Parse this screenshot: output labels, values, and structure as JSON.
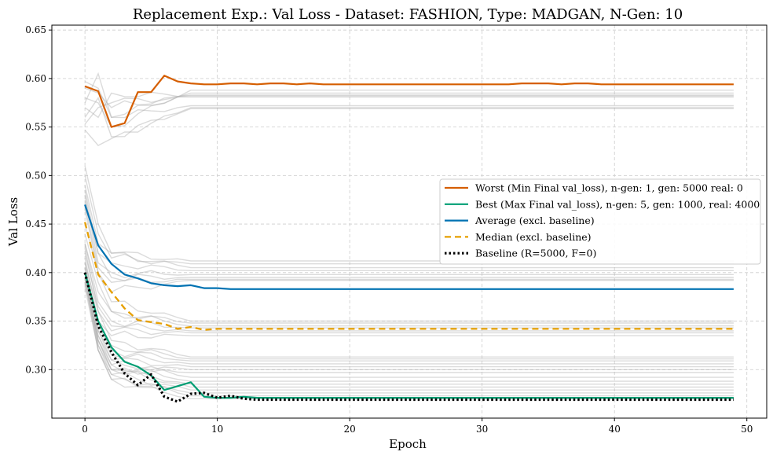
{
  "chart_data": {
    "type": "line",
    "title": "Replacement Exp.: Val Loss - Dataset: FASHION, Type: MADGAN, N-Gen: 10",
    "xlabel": "Epoch",
    "ylabel": "Val Loss",
    "xlim": [
      -2.5,
      51.5
    ],
    "ylim": [
      0.25,
      0.655
    ],
    "xticks": [
      0,
      10,
      20,
      30,
      40,
      50
    ],
    "yticks": [
      0.3,
      0.35,
      0.4,
      0.45,
      0.5,
      0.55,
      0.6,
      0.65
    ],
    "xtick_labels": [
      "0",
      "10",
      "20",
      "30",
      "40",
      "50"
    ],
    "ytick_labels": [
      "0.30",
      "0.35",
      "0.40",
      "0.45",
      "0.50",
      "0.55",
      "0.60",
      "0.65"
    ],
    "grid": true,
    "legend_position": "right",
    "colors": {
      "worst": "#d55e00",
      "best": "#009e73",
      "average": "#0072b2",
      "median": "#e69f00",
      "baseline": "#000000",
      "background_runs": "#b0b0b0"
    },
    "series": [
      {
        "key": "worst",
        "name": "Worst (Min Final val_loss), n-gen: 1, gen: 5000 real: 0",
        "style": "solid",
        "values": [
          0.592,
          0.587,
          0.55,
          0.554,
          0.586,
          0.586,
          0.603,
          0.597,
          0.595,
          0.594,
          0.594,
          0.595,
          0.595,
          0.594,
          0.595,
          0.595,
          0.594,
          0.595,
          0.594,
          0.594,
          0.594,
          0.594,
          0.594,
          0.594,
          0.594,
          0.594,
          0.594,
          0.594,
          0.594,
          0.594,
          0.594,
          0.594,
          0.594,
          0.595,
          0.595,
          0.595,
          0.594,
          0.595,
          0.595,
          0.594,
          0.594,
          0.594,
          0.594,
          0.594,
          0.594,
          0.594,
          0.594,
          0.594,
          0.594,
          0.594
        ]
      },
      {
        "key": "best",
        "name": "Best (Max Final val_loss), n-gen: 5, gen: 1000, real: 4000",
        "style": "solid",
        "values": [
          0.4,
          0.35,
          0.323,
          0.308,
          0.303,
          0.294,
          0.279,
          0.283,
          0.287,
          0.272,
          0.271,
          0.271,
          0.272,
          0.271,
          0.271,
          0.271,
          0.271,
          0.271,
          0.271,
          0.271,
          0.271,
          0.271,
          0.271,
          0.271,
          0.271,
          0.271,
          0.271,
          0.271,
          0.271,
          0.271,
          0.271,
          0.271,
          0.271,
          0.271,
          0.271,
          0.271,
          0.271,
          0.271,
          0.271,
          0.271,
          0.271,
          0.271,
          0.271,
          0.271,
          0.271,
          0.271,
          0.271,
          0.271,
          0.271,
          0.271
        ]
      },
      {
        "key": "average",
        "name": "Average (excl. baseline)",
        "style": "solid",
        "values": [
          0.47,
          0.428,
          0.409,
          0.398,
          0.394,
          0.389,
          0.387,
          0.386,
          0.387,
          0.384,
          0.384,
          0.383,
          0.383,
          0.383,
          0.383,
          0.383,
          0.383,
          0.383,
          0.383,
          0.383,
          0.383,
          0.383,
          0.383,
          0.383,
          0.383,
          0.383,
          0.383,
          0.383,
          0.383,
          0.383,
          0.383,
          0.383,
          0.383,
          0.383,
          0.383,
          0.383,
          0.383,
          0.383,
          0.383,
          0.383,
          0.383,
          0.383,
          0.383,
          0.383,
          0.383,
          0.383,
          0.383,
          0.383,
          0.383,
          0.383
        ]
      },
      {
        "key": "median",
        "name": "Median (excl. baseline)",
        "style": "dashed",
        "values": [
          0.452,
          0.398,
          0.38,
          0.363,
          0.351,
          0.349,
          0.347,
          0.342,
          0.344,
          0.341,
          0.342,
          0.342,
          0.342,
          0.342,
          0.342,
          0.342,
          0.342,
          0.342,
          0.342,
          0.342,
          0.342,
          0.342,
          0.342,
          0.342,
          0.342,
          0.342,
          0.342,
          0.342,
          0.342,
          0.342,
          0.342,
          0.342,
          0.342,
          0.342,
          0.342,
          0.342,
          0.342,
          0.342,
          0.342,
          0.342,
          0.342,
          0.342,
          0.342,
          0.342,
          0.342,
          0.342,
          0.342,
          0.342,
          0.342,
          0.342
        ]
      },
      {
        "key": "baseline",
        "name": "Baseline (R=5000, F=0)",
        "style": "dotted",
        "values": [
          0.4,
          0.345,
          0.318,
          0.296,
          0.284,
          0.295,
          0.272,
          0.267,
          0.275,
          0.276,
          0.271,
          0.273,
          0.27,
          0.269,
          0.269,
          0.269,
          0.269,
          0.269,
          0.269,
          0.269,
          0.269,
          0.269,
          0.269,
          0.269,
          0.269,
          0.269,
          0.269,
          0.269,
          0.269,
          0.269,
          0.269,
          0.269,
          0.269,
          0.269,
          0.269,
          0.269,
          0.269,
          0.269,
          0.269,
          0.269,
          0.269,
          0.269,
          0.269,
          0.269,
          0.269,
          0.269,
          0.269,
          0.269,
          0.269,
          0.269
        ]
      }
    ],
    "background_runs": [
      {
        "start": [
          0.56,
          0.58,
          0.54
        ],
        "final": 0.569
      },
      {
        "start": [
          0.575,
          0.605,
          0.56
        ],
        "final": 0.585
      },
      {
        "start": [
          0.553,
          0.57,
          0.575
        ],
        "final": 0.581
      },
      {
        "start": [
          0.59,
          0.585,
          0.57
        ],
        "final": 0.583
      },
      {
        "start": [
          0.547,
          0.531,
          0.538
        ],
        "final": 0.57
      },
      {
        "start": [
          0.57,
          0.56,
          0.585
        ],
        "final": 0.582
      },
      {
        "start": [
          0.58,
          0.575,
          0.55
        ],
        "final": 0.588
      },
      {
        "start": [
          0.597,
          0.59,
          0.56
        ],
        "final": 0.572
      },
      {
        "start": [
          0.51,
          0.45,
          0.42
        ],
        "final": 0.412
      },
      {
        "start": [
          0.5,
          0.44,
          0.415
        ],
        "final": 0.409
      },
      {
        "start": [
          0.49,
          0.43,
          0.42
        ],
        "final": 0.405
      },
      {
        "start": [
          0.485,
          0.42,
          0.41
        ],
        "final": 0.402
      },
      {
        "start": [
          0.48,
          0.41,
          0.4
        ],
        "final": 0.398
      },
      {
        "start": [
          0.475,
          0.42,
          0.395
        ],
        "final": 0.395
      },
      {
        "start": [
          0.47,
          0.405,
          0.39
        ],
        "final": 0.393
      },
      {
        "start": [
          0.465,
          0.4,
          0.38
        ],
        "final": 0.392
      },
      {
        "start": [
          0.45,
          0.4,
          0.37
        ],
        "final": 0.35
      },
      {
        "start": [
          0.44,
          0.39,
          0.36
        ],
        "final": 0.348
      },
      {
        "start": [
          0.43,
          0.38,
          0.36
        ],
        "final": 0.345
      },
      {
        "start": [
          0.43,
          0.37,
          0.35
        ],
        "final": 0.343
      },
      {
        "start": [
          0.42,
          0.365,
          0.345
        ],
        "final": 0.34
      },
      {
        "start": [
          0.41,
          0.36,
          0.34
        ],
        "final": 0.338
      },
      {
        "start": [
          0.4,
          0.35,
          0.335
        ],
        "final": 0.335
      },
      {
        "start": [
          0.425,
          0.36,
          0.33
        ],
        "final": 0.313
      },
      {
        "start": [
          0.415,
          0.35,
          0.325
        ],
        "final": 0.311
      },
      {
        "start": [
          0.405,
          0.345,
          0.32
        ],
        "final": 0.309
      },
      {
        "start": [
          0.4,
          0.34,
          0.315
        ],
        "final": 0.306
      },
      {
        "start": [
          0.395,
          0.335,
          0.31
        ],
        "final": 0.303
      },
      {
        "start": [
          0.4,
          0.33,
          0.305
        ],
        "final": 0.3
      },
      {
        "start": [
          0.39,
          0.33,
          0.3
        ],
        "final": 0.297
      },
      {
        "start": [
          0.41,
          0.34,
          0.31
        ],
        "final": 0.292
      },
      {
        "start": [
          0.405,
          0.335,
          0.305
        ],
        "final": 0.288
      },
      {
        "start": [
          0.4,
          0.33,
          0.3
        ],
        "final": 0.285
      },
      {
        "start": [
          0.395,
          0.325,
          0.3
        ],
        "final": 0.282
      },
      {
        "start": [
          0.39,
          0.32,
          0.295
        ],
        "final": 0.279
      },
      {
        "start": [
          0.385,
          0.32,
          0.29
        ],
        "final": 0.276
      },
      {
        "start": [
          0.4,
          0.325,
          0.295
        ],
        "final": 0.273
      },
      {
        "start": [
          0.395,
          0.32,
          0.29
        ],
        "final": 0.27
      }
    ]
  }
}
